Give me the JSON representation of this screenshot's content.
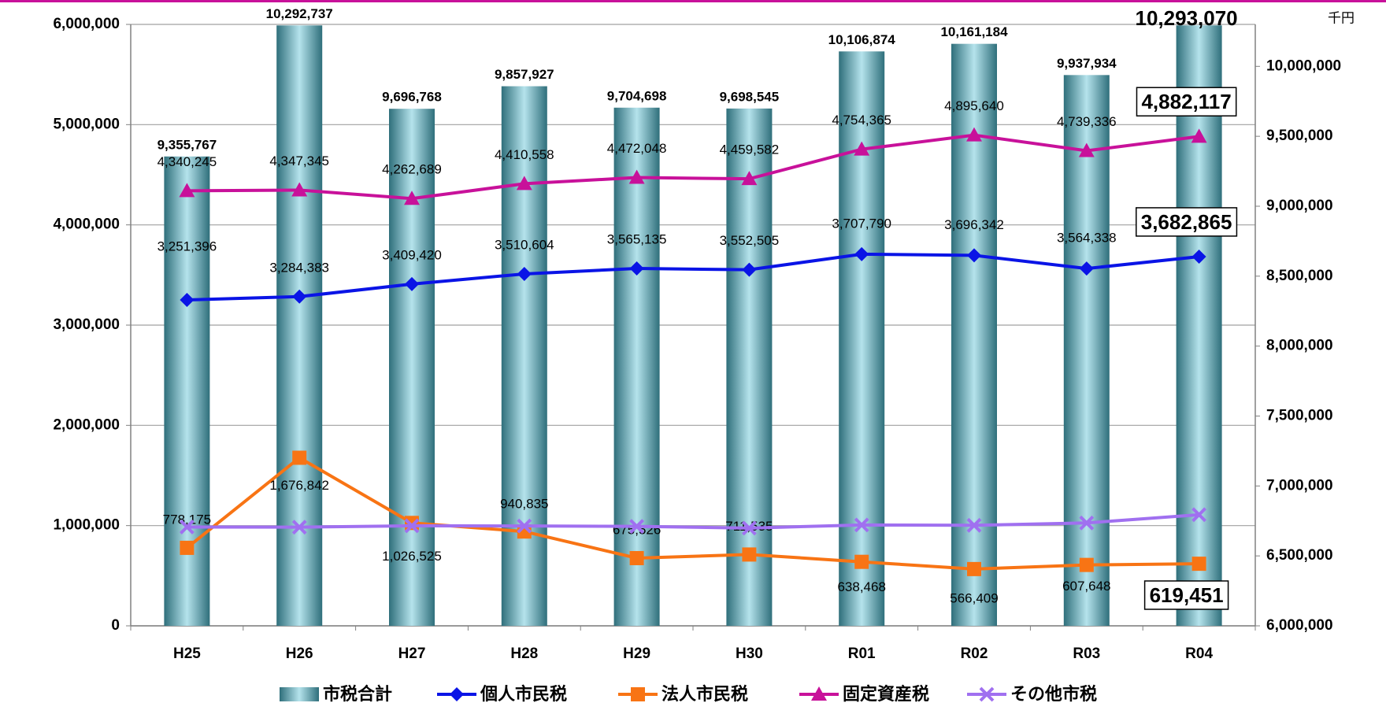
{
  "chart_data": {
    "type": "bar-line",
    "unit": "千円",
    "categories": [
      "H25",
      "H26",
      "H27",
      "H28",
      "H29",
      "H30",
      "R01",
      "R02",
      "R03",
      "R04"
    ],
    "ylim": [
      0,
      6000000
    ],
    "yticks": [
      0,
      {
        "value": 1000000,
        "label": "1,000,000"
      },
      {
        "value": 2000000,
        "label": "2,000,000"
      },
      {
        "value": 3000000,
        "label": "3,000,000"
      },
      {
        "value": 4000000,
        "label": "4,000,000"
      },
      {
        "value": 5000000,
        "label": "5,000,000"
      },
      {
        "value": 6000000,
        "label": "6,000,000"
      }
    ],
    "y2lim": [
      6000000,
      10300000
    ],
    "y2ticks": [
      {
        "value": 6000000,
        "label": "6,000,000"
      },
      {
        "value": 6500000,
        "label": "6,500,000"
      },
      {
        "value": 7000000,
        "label": "7,000,000"
      },
      {
        "value": 7500000,
        "label": "7,500,000"
      },
      {
        "value": 8000000,
        "label": "8,000,000"
      },
      {
        "value": 8500000,
        "label": "8,500,000"
      },
      {
        "value": 9000000,
        "label": "9,000,000"
      },
      {
        "value": 9500000,
        "label": "9,500,000"
      },
      {
        "value": 10000000,
        "label": "10,000,000"
      }
    ],
    "grid": true,
    "series": [
      {
        "name": "市税合計",
        "kind": "bar",
        "axis": "y2",
        "color": "#2f6f7b",
        "values": [
          9355767,
          10292737,
          9696768,
          9857927,
          9704698,
          9698545,
          10106874,
          10161184,
          9937934,
          10293070
        ],
        "value_labels": [
          "9,355,767",
          "10,292,737",
          "9,696,768",
          "9,857,927",
          "9,704,698",
          "9,698,545",
          "10,106,874",
          "10,161,184",
          "9,937,934",
          "10,293,070"
        ]
      },
      {
        "name": "個人市民税",
        "kind": "line",
        "marker": "diamond",
        "color": "#0a14e6",
        "values": [
          3251396,
          3284383,
          3409420,
          3510604,
          3565135,
          3552505,
          3707790,
          3696342,
          3564338,
          3682865
        ],
        "value_labels": [
          "3,251,396",
          "3,284,383",
          "3,409,420",
          "3,510,604",
          "3,565,135",
          "3,552,505",
          "3,707,790",
          "3,696,342",
          "3,564,338",
          "3,682,865"
        ]
      },
      {
        "name": "法人市民税",
        "kind": "line",
        "marker": "square",
        "color": "#f87414",
        "values": [
          778175,
          1676842,
          1026525,
          940835,
          675526,
          711535,
          638468,
          566409,
          607648,
          619451
        ],
        "value_labels": [
          "778,175",
          "1,676,842",
          "1,026,525",
          "940,835",
          "675,526",
          "711,535",
          "638,468",
          "566,409",
          "607,648",
          "619,451"
        ]
      },
      {
        "name": "固定資産税",
        "kind": "line",
        "marker": "triangle",
        "color": "#c8119a",
        "values": [
          4340245,
          4347345,
          4262689,
          4410558,
          4472048,
          4459582,
          4754365,
          4895640,
          4739336,
          4882117
        ],
        "value_labels": [
          "4,340,245",
          "4,347,345",
          "4,262,689",
          "4,410,558",
          "4,472,048",
          "4,459,582",
          "4,754,365",
          "4,895,640",
          "4,739,336",
          "4,882,117"
        ]
      },
      {
        "name": "その他市税",
        "kind": "line",
        "marker": "x",
        "color": "#a070f0",
        "values": [
          985951,
          984167,
          998134,
          995930,
          991989,
          974923,
          1006251,
          1002793,
          1026612,
          1108637
        ]
      }
    ]
  }
}
